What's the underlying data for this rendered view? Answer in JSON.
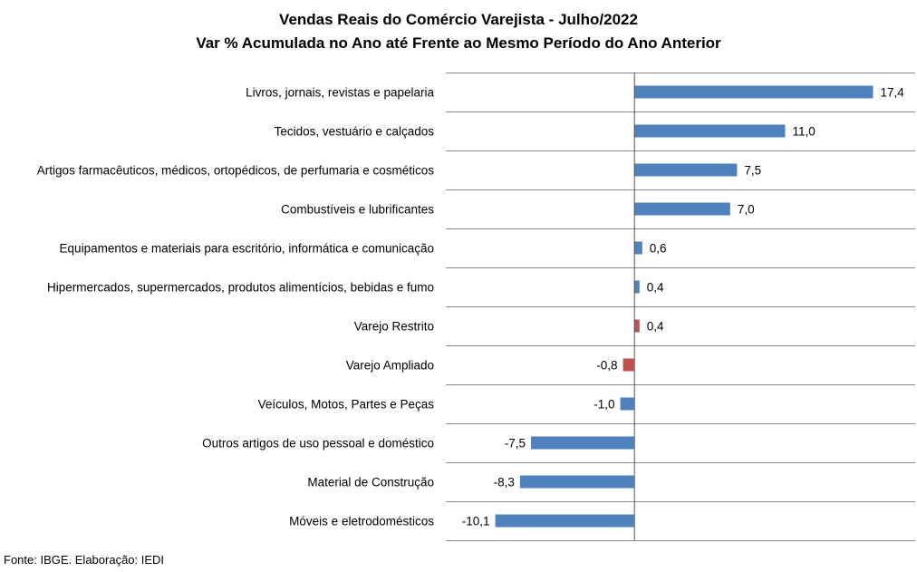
{
  "chart_data": {
    "type": "bar",
    "orientation": "horizontal",
    "title": "Vendas Reais do Comércio Varejista - Julho/2022",
    "subtitle": "Var % Acumulada no Ano até Frente ao Mesmo Período do Ano Anterior",
    "categories": [
      "Livros, jornais, revistas e papelaria",
      "Tecidos, vestuário e calçados",
      "Artigos farmacêuticos, médicos, ortopédicos, de perfumaria e cosméticos",
      "Combustíveis e lubrificantes",
      "Equipamentos e materiais para escritório, informática e comunicação",
      "Hipermercados, supermercados, produtos alimentícios, bebidas e fumo",
      "Varejo Restrito",
      "Varejo Ampliado",
      "Veículos, Motos, Partes e Peças",
      "Outros artigos de uso pessoal e doméstico",
      "Material de Construção",
      "Móveis e eletrodomésticos"
    ],
    "values": [
      17.4,
      11.0,
      7.5,
      7.0,
      0.6,
      0.4,
      0.4,
      -0.8,
      -1.0,
      -7.5,
      -8.3,
      -10.1
    ],
    "value_labels": [
      "17,4",
      "11,0",
      "7,5",
      "7,0",
      "0,6",
      "0,4",
      "0,4",
      "-0,8",
      "-1,0",
      "-7,5",
      "-8,3",
      "-10,1"
    ],
    "highlight": [
      false,
      false,
      false,
      false,
      false,
      false,
      true,
      true,
      false,
      false,
      false,
      false
    ],
    "xlim": [
      -13.7,
      20.6
    ],
    "grid": "horizontal lines between categories",
    "colors": {
      "bar": "#4f81bd",
      "highlight": "#c0504d",
      "grid": "#888888"
    }
  },
  "source": "Fonte: IBGE. Elaboração: IEDI"
}
